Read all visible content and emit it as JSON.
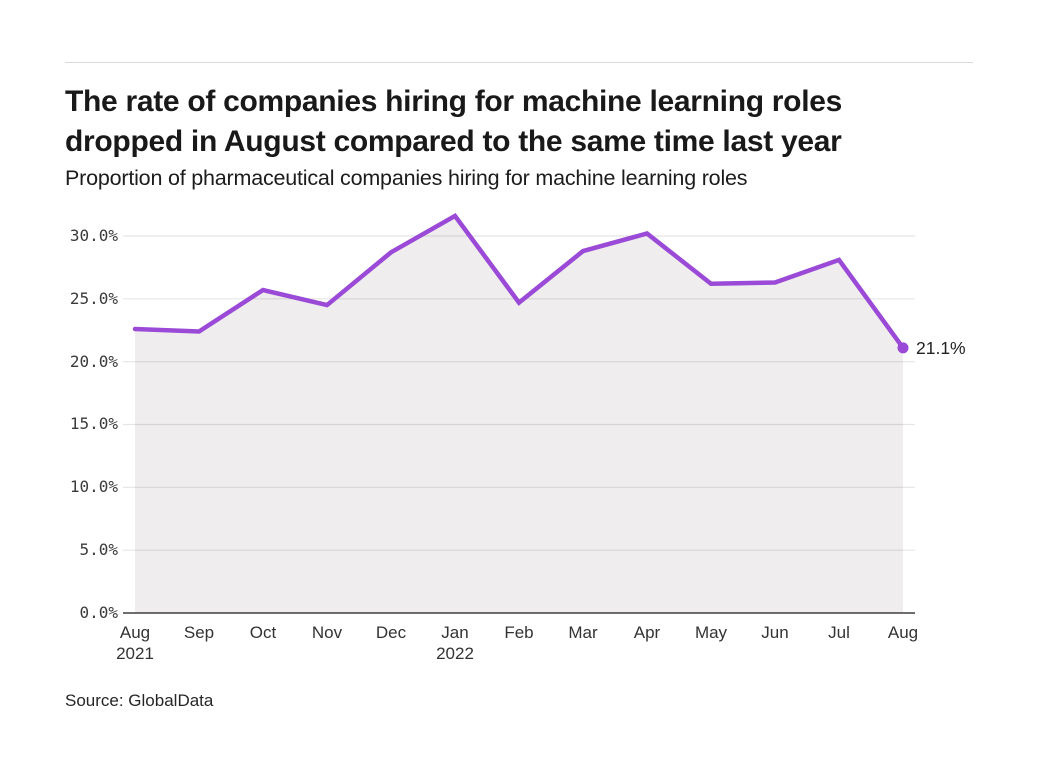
{
  "header": {
    "title_line1": "The rate of companies hiring for machine learning roles",
    "title_line2": "dropped in August compared to the same time last year",
    "subtitle": "Proportion of pharmaceutical companies hiring for machine learning roles"
  },
  "footer": {
    "source": "Source: GlobalData"
  },
  "colors": {
    "line": "#9a4ad6",
    "dot": "#9a4ad6",
    "area_fill": "#efedee",
    "grid": "rgba(0,0,0,0.10)",
    "axis": "#3f3f3f",
    "title_text": "#191919",
    "tick_text": "#3b3b3b"
  },
  "chart_data": {
    "type": "line",
    "title": "The rate of companies hiring for machine learning roles dropped in August compared to the same time last year",
    "subtitle": "Proportion of pharmaceutical companies hiring for machine learning roles",
    "xlabel": "",
    "ylabel": "",
    "unit": "%",
    "grid": true,
    "legend": false,
    "area_fill_under_line": true,
    "ylim": [
      0,
      32
    ],
    "y_ticks": [
      {
        "value": 0,
        "label": "0.0%"
      },
      {
        "value": 5,
        "label": "5.0%"
      },
      {
        "value": 10,
        "label": "10.0%"
      },
      {
        "value": 15,
        "label": "15.0%"
      },
      {
        "value": 20,
        "label": "20.0%"
      },
      {
        "value": 25,
        "label": "25.0%"
      },
      {
        "value": 30,
        "label": "30.0%"
      }
    ],
    "categories": [
      {
        "month": "Aug",
        "year": "2021"
      },
      {
        "month": "Sep"
      },
      {
        "month": "Oct"
      },
      {
        "month": "Nov"
      },
      {
        "month": "Dec"
      },
      {
        "month": "Jan",
        "year": "2022"
      },
      {
        "month": "Feb"
      },
      {
        "month": "Mar"
      },
      {
        "month": "Apr"
      },
      {
        "month": "May"
      },
      {
        "month": "Jun"
      },
      {
        "month": "Jul"
      },
      {
        "month": "Aug"
      }
    ],
    "values": [
      22.6,
      22.4,
      25.7,
      24.5,
      28.7,
      31.6,
      24.7,
      28.8,
      30.2,
      26.2,
      26.3,
      28.1,
      21.1
    ],
    "end_label": "21.1%"
  }
}
